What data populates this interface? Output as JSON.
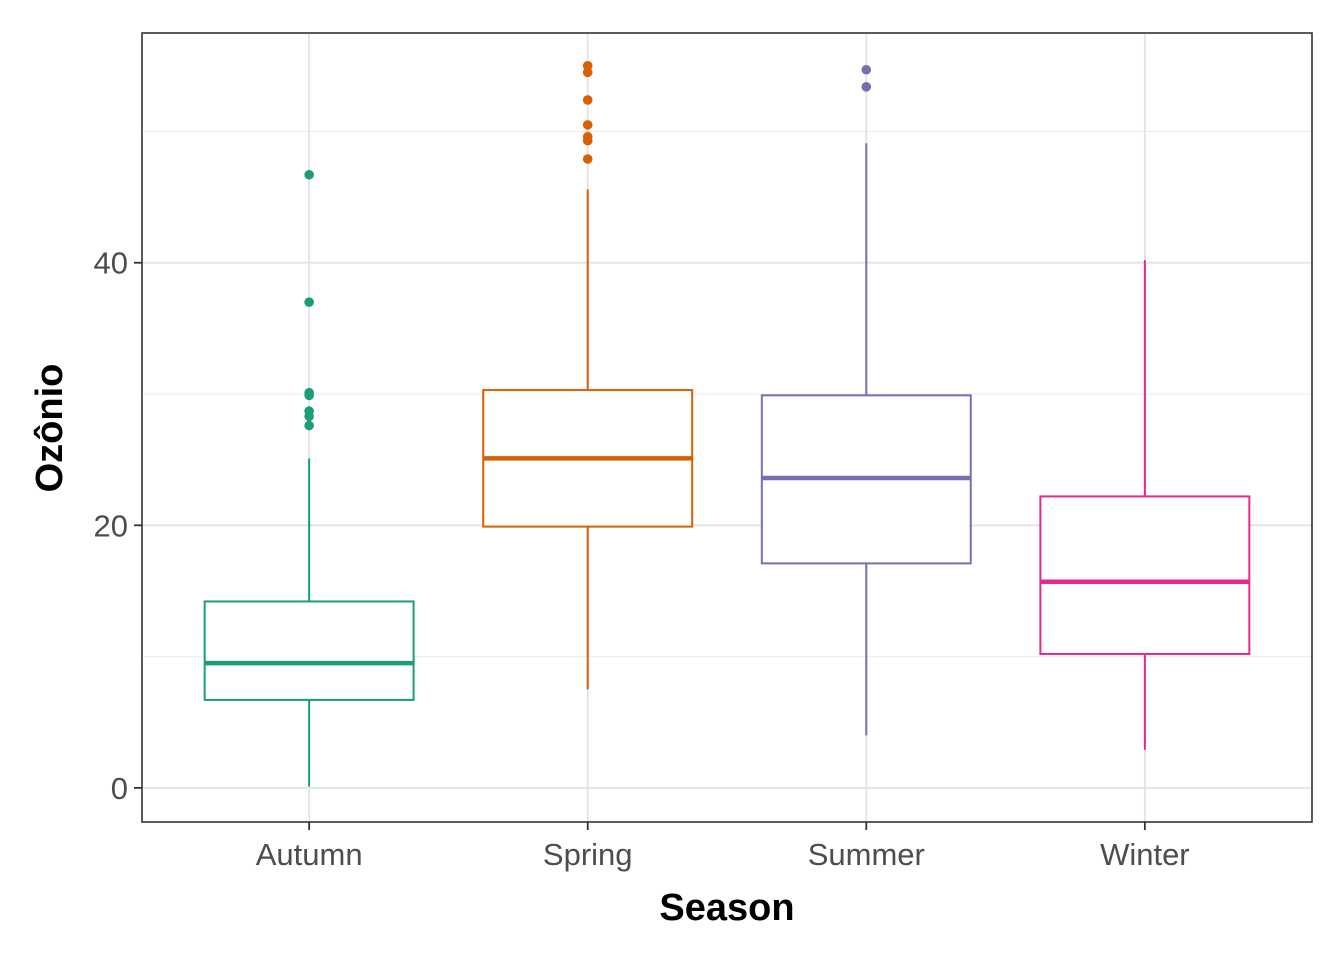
{
  "chart_data": {
    "type": "boxplot",
    "title": "",
    "xlabel": "Season",
    "ylabel": "Ozônio",
    "categories": [
      "Autumn",
      "Spring",
      "Summer",
      "Winter"
    ],
    "ylim": [
      -2.6,
      57.5
    ],
    "yticks": [
      0,
      20,
      40
    ],
    "grid": true,
    "legend": "none",
    "boxes": [
      {
        "category": "Autumn",
        "color": "#1b9e77",
        "whisker_low": 0.1,
        "q1": 6.7,
        "median": 9.5,
        "q3": 14.2,
        "whisker_high": 25.1,
        "outliers": [
          27.6,
          28.3,
          28.7,
          29.9,
          30.1,
          37.0,
          46.7
        ]
      },
      {
        "category": "Spring",
        "color": "#d95f02",
        "whisker_low": 7.5,
        "q1": 19.9,
        "median": 25.1,
        "q3": 30.3,
        "whisker_high": 45.6,
        "outliers": [
          47.9,
          49.3,
          49.6,
          50.5,
          52.4,
          54.5,
          55.0
        ]
      },
      {
        "category": "Summer",
        "color": "#7570b3",
        "whisker_low": 4.0,
        "q1": 17.1,
        "median": 23.6,
        "q3": 29.9,
        "whisker_high": 49.1,
        "outliers": [
          53.4,
          54.7
        ]
      },
      {
        "category": "Winter",
        "color": "#e7298a",
        "whisker_low": 2.9,
        "q1": 10.2,
        "median": 15.7,
        "q3": 22.2,
        "whisker_high": 40.2,
        "outliers": []
      }
    ]
  }
}
